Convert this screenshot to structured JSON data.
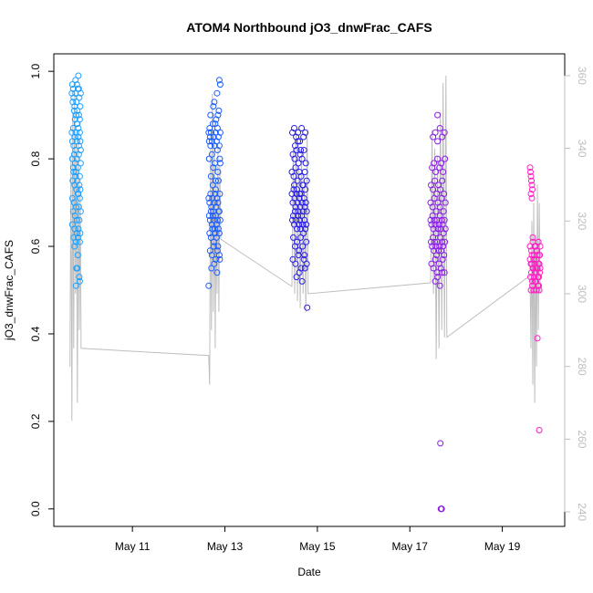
{
  "chart_data": {
    "type": "scatter",
    "title": "ATOM4 Northbound jO3_dnwFrac_CAFS",
    "xlabel": "Date",
    "ylabel": "jO3_dnwFrac_CAFS",
    "x_unit": "day of May",
    "xlim": [
      9.3,
      20.35
    ],
    "ylim": [
      -0.04,
      1.04
    ],
    "y2lim": [
      236,
      366
    ],
    "x_ticks": [
      {
        "value": 11,
        "label": "May 11"
      },
      {
        "value": 13,
        "label": "May 13"
      },
      {
        "value": 15,
        "label": "May 15"
      },
      {
        "value": 17,
        "label": "May 17"
      },
      {
        "value": 19,
        "label": "May 19"
      }
    ],
    "y_ticks": [
      {
        "value": 0.0,
        "label": "0.0"
      },
      {
        "value": 0.2,
        "label": "0.2"
      },
      {
        "value": 0.4,
        "label": "0.4"
      },
      {
        "value": 0.6,
        "label": "0.6"
      },
      {
        "value": 0.8,
        "label": "0.8"
      },
      {
        "value": 1.0,
        "label": "1.0"
      }
    ],
    "y2_ticks": [
      {
        "value": 240,
        "label": "240"
      },
      {
        "value": 260,
        "label": "260"
      },
      {
        "value": 280,
        "label": "280"
      },
      {
        "value": 300,
        "label": "300"
      },
      {
        "value": 320,
        "label": "320"
      },
      {
        "value": 340,
        "label": "340"
      },
      {
        "value": 360,
        "label": "360"
      }
    ],
    "grid": false,
    "legend": "none",
    "colors": {
      "secondary_series": "#bebebe",
      "flight_1": "#1ea0ff",
      "flight_2": "#1a5cff",
      "flight_3": "#2a1ee6",
      "flight_4": "#8a1ee6",
      "flight_5": "#ff1ec4",
      "axis": "#000000",
      "right_axis": "#bebebe"
    },
    "series": [
      {
        "axis": "left",
        "style": "points",
        "color": "#1ea0ff",
        "x": [
          9.69,
          9.7,
          9.71,
          9.72,
          9.73,
          9.74,
          9.75,
          9.76,
          9.77,
          9.78,
          9.79,
          9.8,
          9.81,
          9.82,
          9.83,
          9.84,
          9.85,
          9.86,
          9.87,
          9.88,
          9.69,
          9.7,
          9.72,
          9.73,
          9.75,
          9.77,
          9.78,
          9.8,
          9.81,
          9.83,
          9.84,
          9.86,
          9.87,
          9.88,
          9.7,
          9.72,
          9.74,
          9.76,
          9.78,
          9.8,
          9.82,
          9.84,
          9.86,
          9.88,
          9.71,
          9.73,
          9.75,
          9.77,
          9.79,
          9.81,
          9.83,
          9.85,
          9.87,
          9.7,
          9.74,
          9.78,
          9.82,
          9.86,
          9.72,
          9.76,
          9.8,
          9.84,
          9.88,
          9.7,
          9.75,
          9.8,
          9.85,
          9.73,
          9.78,
          9.83,
          9.87,
          9.75,
          9.82,
          9.86,
          9.79,
          9.85,
          9.78,
          9.83,
          9.77,
          9.8,
          9.84,
          9.81,
          9.86,
          9.82
        ],
        "y": [
          0.95,
          0.97,
          0.93,
          0.96,
          0.94,
          0.91,
          0.92,
          0.89,
          0.95,
          0.9,
          0.93,
          0.88,
          0.91,
          0.96,
          0.87,
          0.9,
          0.94,
          0.89,
          0.92,
          0.95,
          0.86,
          0.84,
          0.87,
          0.83,
          0.85,
          0.82,
          0.86,
          0.84,
          0.88,
          0.85,
          0.83,
          0.86,
          0.84,
          0.82,
          0.8,
          0.78,
          0.81,
          0.79,
          0.77,
          0.8,
          0.78,
          0.81,
          0.76,
          0.79,
          0.75,
          0.77,
          0.74,
          0.76,
          0.73,
          0.75,
          0.72,
          0.74,
          0.73,
          0.71,
          0.7,
          0.69,
          0.72,
          0.71,
          0.68,
          0.67,
          0.66,
          0.69,
          0.68,
          0.65,
          0.64,
          0.63,
          0.66,
          0.62,
          0.61,
          0.64,
          0.63,
          0.6,
          0.62,
          0.61,
          0.55,
          0.53,
          0.51,
          0.99,
          0.98,
          0.97,
          0.96,
          0.55,
          0.52,
          0.58
        ]
      },
      {
        "axis": "left",
        "style": "points",
        "color": "#1a5cff",
        "x": [
          12.65,
          12.66,
          12.67,
          12.68,
          12.69,
          12.7,
          12.72,
          12.74,
          12.76,
          12.78,
          12.8,
          12.82,
          12.84,
          12.86,
          12.88,
          12.9,
          12.65,
          12.67,
          12.69,
          12.71,
          12.73,
          12.75,
          12.77,
          12.79,
          12.81,
          12.83,
          12.85,
          12.87,
          12.89,
          12.66,
          12.68,
          12.7,
          12.72,
          12.74,
          12.76,
          12.78,
          12.8,
          12.82,
          12.84,
          12.86,
          12.88,
          12.9,
          12.67,
          12.7,
          12.73,
          12.76,
          12.79,
          12.82,
          12.85,
          12.88,
          12.68,
          12.72,
          12.76,
          12.8,
          12.84,
          12.88,
          12.7,
          12.75,
          12.8,
          12.85,
          12.9,
          12.66,
          12.72,
          12.78,
          12.84,
          12.89,
          12.69,
          12.75,
          12.81,
          12.87,
          12.71,
          12.77,
          12.83,
          12.89,
          12.74,
          12.8,
          12.86,
          12.77,
          12.83,
          12.79,
          12.85,
          12.65,
          12.88,
          12.9
        ],
        "y": [
          0.86,
          0.84,
          0.87,
          0.85,
          0.83,
          0.86,
          0.84,
          0.88,
          0.85,
          0.83,
          0.86,
          0.84,
          0.87,
          0.85,
          0.83,
          0.86,
          0.71,
          0.7,
          0.72,
          0.69,
          0.71,
          0.68,
          0.7,
          0.72,
          0.69,
          0.71,
          0.7,
          0.68,
          0.72,
          0.67,
          0.66,
          0.68,
          0.65,
          0.67,
          0.66,
          0.64,
          0.67,
          0.65,
          0.66,
          0.64,
          0.68,
          0.66,
          0.63,
          0.62,
          0.64,
          0.61,
          0.63,
          0.62,
          0.6,
          0.63,
          0.59,
          0.58,
          0.6,
          0.57,
          0.59,
          0.58,
          0.76,
          0.78,
          0.75,
          0.77,
          0.79,
          0.8,
          0.81,
          0.79,
          0.82,
          0.8,
          0.9,
          0.92,
          0.89,
          0.91,
          0.55,
          0.56,
          0.54,
          0.57,
          0.74,
          0.73,
          0.75,
          0.93,
          0.95,
          0.88,
          0.9,
          0.51,
          0.98,
          0.97
        ]
      },
      {
        "axis": "left",
        "style": "points",
        "color": "#2a1ee6",
        "x": [
          14.45,
          14.47,
          14.49,
          14.51,
          14.53,
          14.55,
          14.57,
          14.59,
          14.61,
          14.63,
          14.65,
          14.67,
          14.69,
          14.71,
          14.73,
          14.75,
          14.77,
          14.46,
          14.48,
          14.5,
          14.52,
          14.54,
          14.56,
          14.58,
          14.6,
          14.62,
          14.64,
          14.66,
          14.68,
          14.7,
          14.72,
          14.74,
          14.76,
          14.45,
          14.49,
          14.53,
          14.57,
          14.61,
          14.65,
          14.69,
          14.73,
          14.77,
          14.47,
          14.51,
          14.55,
          14.59,
          14.63,
          14.67,
          14.71,
          14.75,
          14.46,
          14.5,
          14.54,
          14.58,
          14.62,
          14.66,
          14.7,
          14.74,
          14.48,
          14.52,
          14.56,
          14.6,
          14.64,
          14.68,
          14.72,
          14.76,
          14.47,
          14.53,
          14.59,
          14.65,
          14.71,
          14.77,
          14.5,
          14.56,
          14.62,
          14.68,
          14.74,
          14.55,
          14.61,
          14.67,
          14.73,
          14.52,
          14.58,
          14.64,
          14.78
        ],
        "y": [
          0.72,
          0.7,
          0.73,
          0.71,
          0.69,
          0.72,
          0.7,
          0.68,
          0.71,
          0.69,
          0.72,
          0.7,
          0.68,
          0.71,
          0.69,
          0.7,
          0.68,
          0.66,
          0.67,
          0.65,
          0.68,
          0.66,
          0.64,
          0.67,
          0.65,
          0.66,
          0.64,
          0.67,
          0.65,
          0.63,
          0.66,
          0.64,
          0.65,
          0.77,
          0.76,
          0.78,
          0.75,
          0.77,
          0.76,
          0.74,
          0.77,
          0.75,
          0.81,
          0.8,
          0.82,
          0.79,
          0.81,
          0.8,
          0.82,
          0.79,
          0.86,
          0.87,
          0.85,
          0.86,
          0.84,
          0.87,
          0.85,
          0.86,
          0.62,
          0.6,
          0.61,
          0.59,
          0.62,
          0.6,
          0.58,
          0.61,
          0.57,
          0.56,
          0.58,
          0.55,
          0.57,
          0.56,
          0.74,
          0.73,
          0.72,
          0.74,
          0.73,
          0.53,
          0.54,
          0.52,
          0.55,
          0.83,
          0.84,
          0.82,
          0.46
        ]
      },
      {
        "axis": "left",
        "style": "points",
        "color": "#8a1ee6",
        "x": [
          17.45,
          17.47,
          17.49,
          17.51,
          17.53,
          17.55,
          17.57,
          17.59,
          17.61,
          17.63,
          17.65,
          17.67,
          17.69,
          17.71,
          17.73,
          17.75,
          17.77,
          17.46,
          17.48,
          17.5,
          17.52,
          17.54,
          17.56,
          17.58,
          17.6,
          17.62,
          17.64,
          17.66,
          17.68,
          17.7,
          17.72,
          17.74,
          17.76,
          17.45,
          17.49,
          17.53,
          17.57,
          17.61,
          17.65,
          17.69,
          17.73,
          17.77,
          17.47,
          17.51,
          17.55,
          17.59,
          17.63,
          17.67,
          17.71,
          17.75,
          17.46,
          17.5,
          17.54,
          17.58,
          17.62,
          17.66,
          17.7,
          17.74,
          17.48,
          17.52,
          17.56,
          17.6,
          17.64,
          17.68,
          17.72,
          17.76,
          17.5,
          17.55,
          17.6,
          17.65,
          17.7,
          17.75,
          17.55,
          17.6,
          17.65,
          17.7,
          17.6,
          17.66,
          17.68,
          17.67,
          17.69
        ],
        "y": [
          0.66,
          0.65,
          0.67,
          0.64,
          0.66,
          0.65,
          0.63,
          0.66,
          0.64,
          0.65,
          0.67,
          0.64,
          0.66,
          0.65,
          0.63,
          0.66,
          0.64,
          0.61,
          0.6,
          0.62,
          0.59,
          0.61,
          0.6,
          0.58,
          0.61,
          0.59,
          0.6,
          0.62,
          0.59,
          0.61,
          0.6,
          0.58,
          0.61,
          0.7,
          0.69,
          0.71,
          0.68,
          0.7,
          0.69,
          0.71,
          0.68,
          0.7,
          0.56,
          0.55,
          0.57,
          0.54,
          0.56,
          0.55,
          0.57,
          0.54,
          0.74,
          0.73,
          0.75,
          0.72,
          0.74,
          0.73,
          0.75,
          0.72,
          0.78,
          0.79,
          0.77,
          0.8,
          0.78,
          0.79,
          0.77,
          0.8,
          0.85,
          0.86,
          0.84,
          0.87,
          0.85,
          0.86,
          0.52,
          0.53,
          0.51,
          0.54,
          0.9,
          0.15,
          0.0,
          0.0,
          0.0
        ]
      },
      {
        "axis": "left",
        "style": "points",
        "color": "#ff1ec4",
        "x": [
          19.6,
          19.62,
          19.64,
          19.66,
          19.68,
          19.7,
          19.72,
          19.74,
          19.76,
          19.78,
          19.8,
          19.82,
          19.61,
          19.63,
          19.65,
          19.67,
          19.69,
          19.71,
          19.73,
          19.75,
          19.77,
          19.79,
          19.81,
          19.6,
          19.63,
          19.66,
          19.69,
          19.72,
          19.75,
          19.78,
          19.81,
          19.62,
          19.65,
          19.68,
          19.71,
          19.74,
          19.77,
          19.8,
          19.64,
          19.68,
          19.72,
          19.76,
          19.8,
          19.66,
          19.7,
          19.74,
          19.78,
          19.82,
          19.6,
          19.61,
          19.62,
          19.63,
          19.64,
          19.65,
          19.62,
          19.64,
          19.76,
          19.8,
          19.75,
          19.79
        ],
        "y": [
          0.57,
          0.56,
          0.58,
          0.55,
          0.57,
          0.56,
          0.54,
          0.57,
          0.55,
          0.56,
          0.58,
          0.55,
          0.53,
          0.54,
          0.52,
          0.55,
          0.53,
          0.54,
          0.52,
          0.55,
          0.53,
          0.51,
          0.54,
          0.6,
          0.59,
          0.61,
          0.58,
          0.6,
          0.59,
          0.61,
          0.58,
          0.5,
          0.51,
          0.5,
          0.52,
          0.5,
          0.51,
          0.5,
          0.56,
          0.57,
          0.55,
          0.58,
          0.56,
          0.62,
          0.6,
          0.59,
          0.61,
          0.6,
          0.78,
          0.77,
          0.76,
          0.75,
          0.74,
          0.73,
          0.72,
          0.71,
          0.39,
          0.18,
          0.55,
          0.53
        ]
      },
      {
        "axis": "right",
        "style": "line",
        "color": "#bebebe",
        "x": [
          9.65,
          9.67,
          9.69,
          9.71,
          9.73,
          9.75,
          9.77,
          9.79,
          9.81,
          9.83,
          9.85,
          9.87,
          9.89,
          12.65,
          12.67,
          12.69,
          12.71,
          12.73,
          12.75,
          12.77,
          12.79,
          12.81,
          12.83,
          12.85,
          12.87,
          12.89,
          12.91,
          14.45,
          14.48,
          14.51,
          14.54,
          14.57,
          14.6,
          14.63,
          14.66,
          14.69,
          14.72,
          14.75,
          14.78,
          14.8,
          17.45,
          17.48,
          17.51,
          17.54,
          17.57,
          17.6,
          17.63,
          17.66,
          17.69,
          17.72,
          17.75,
          17.78,
          17.8,
          19.6,
          19.62,
          19.64,
          19.66,
          19.68,
          19.7,
          19.72,
          19.74,
          19.76,
          19.78,
          19.8,
          19.82
        ],
        "y": [
          280,
          338,
          265,
          350,
          285,
          355,
          300,
          340,
          270,
          345,
          290,
          330,
          285,
          283,
          275,
          340,
          290,
          355,
          295,
          345,
          285,
          330,
          300,
          340,
          295,
          335,
          315,
          302,
          340,
          300,
          345,
          298,
          335,
          296,
          340,
          300,
          330,
          295,
          345,
          300,
          303,
          345,
          300,
          340,
          282,
          338,
          285,
          350,
          290,
          358,
          288,
          360,
          288,
          305,
          285,
          320,
          275,
          325,
          270,
          315,
          280,
          330,
          290,
          325,
          300
        ]
      }
    ]
  }
}
